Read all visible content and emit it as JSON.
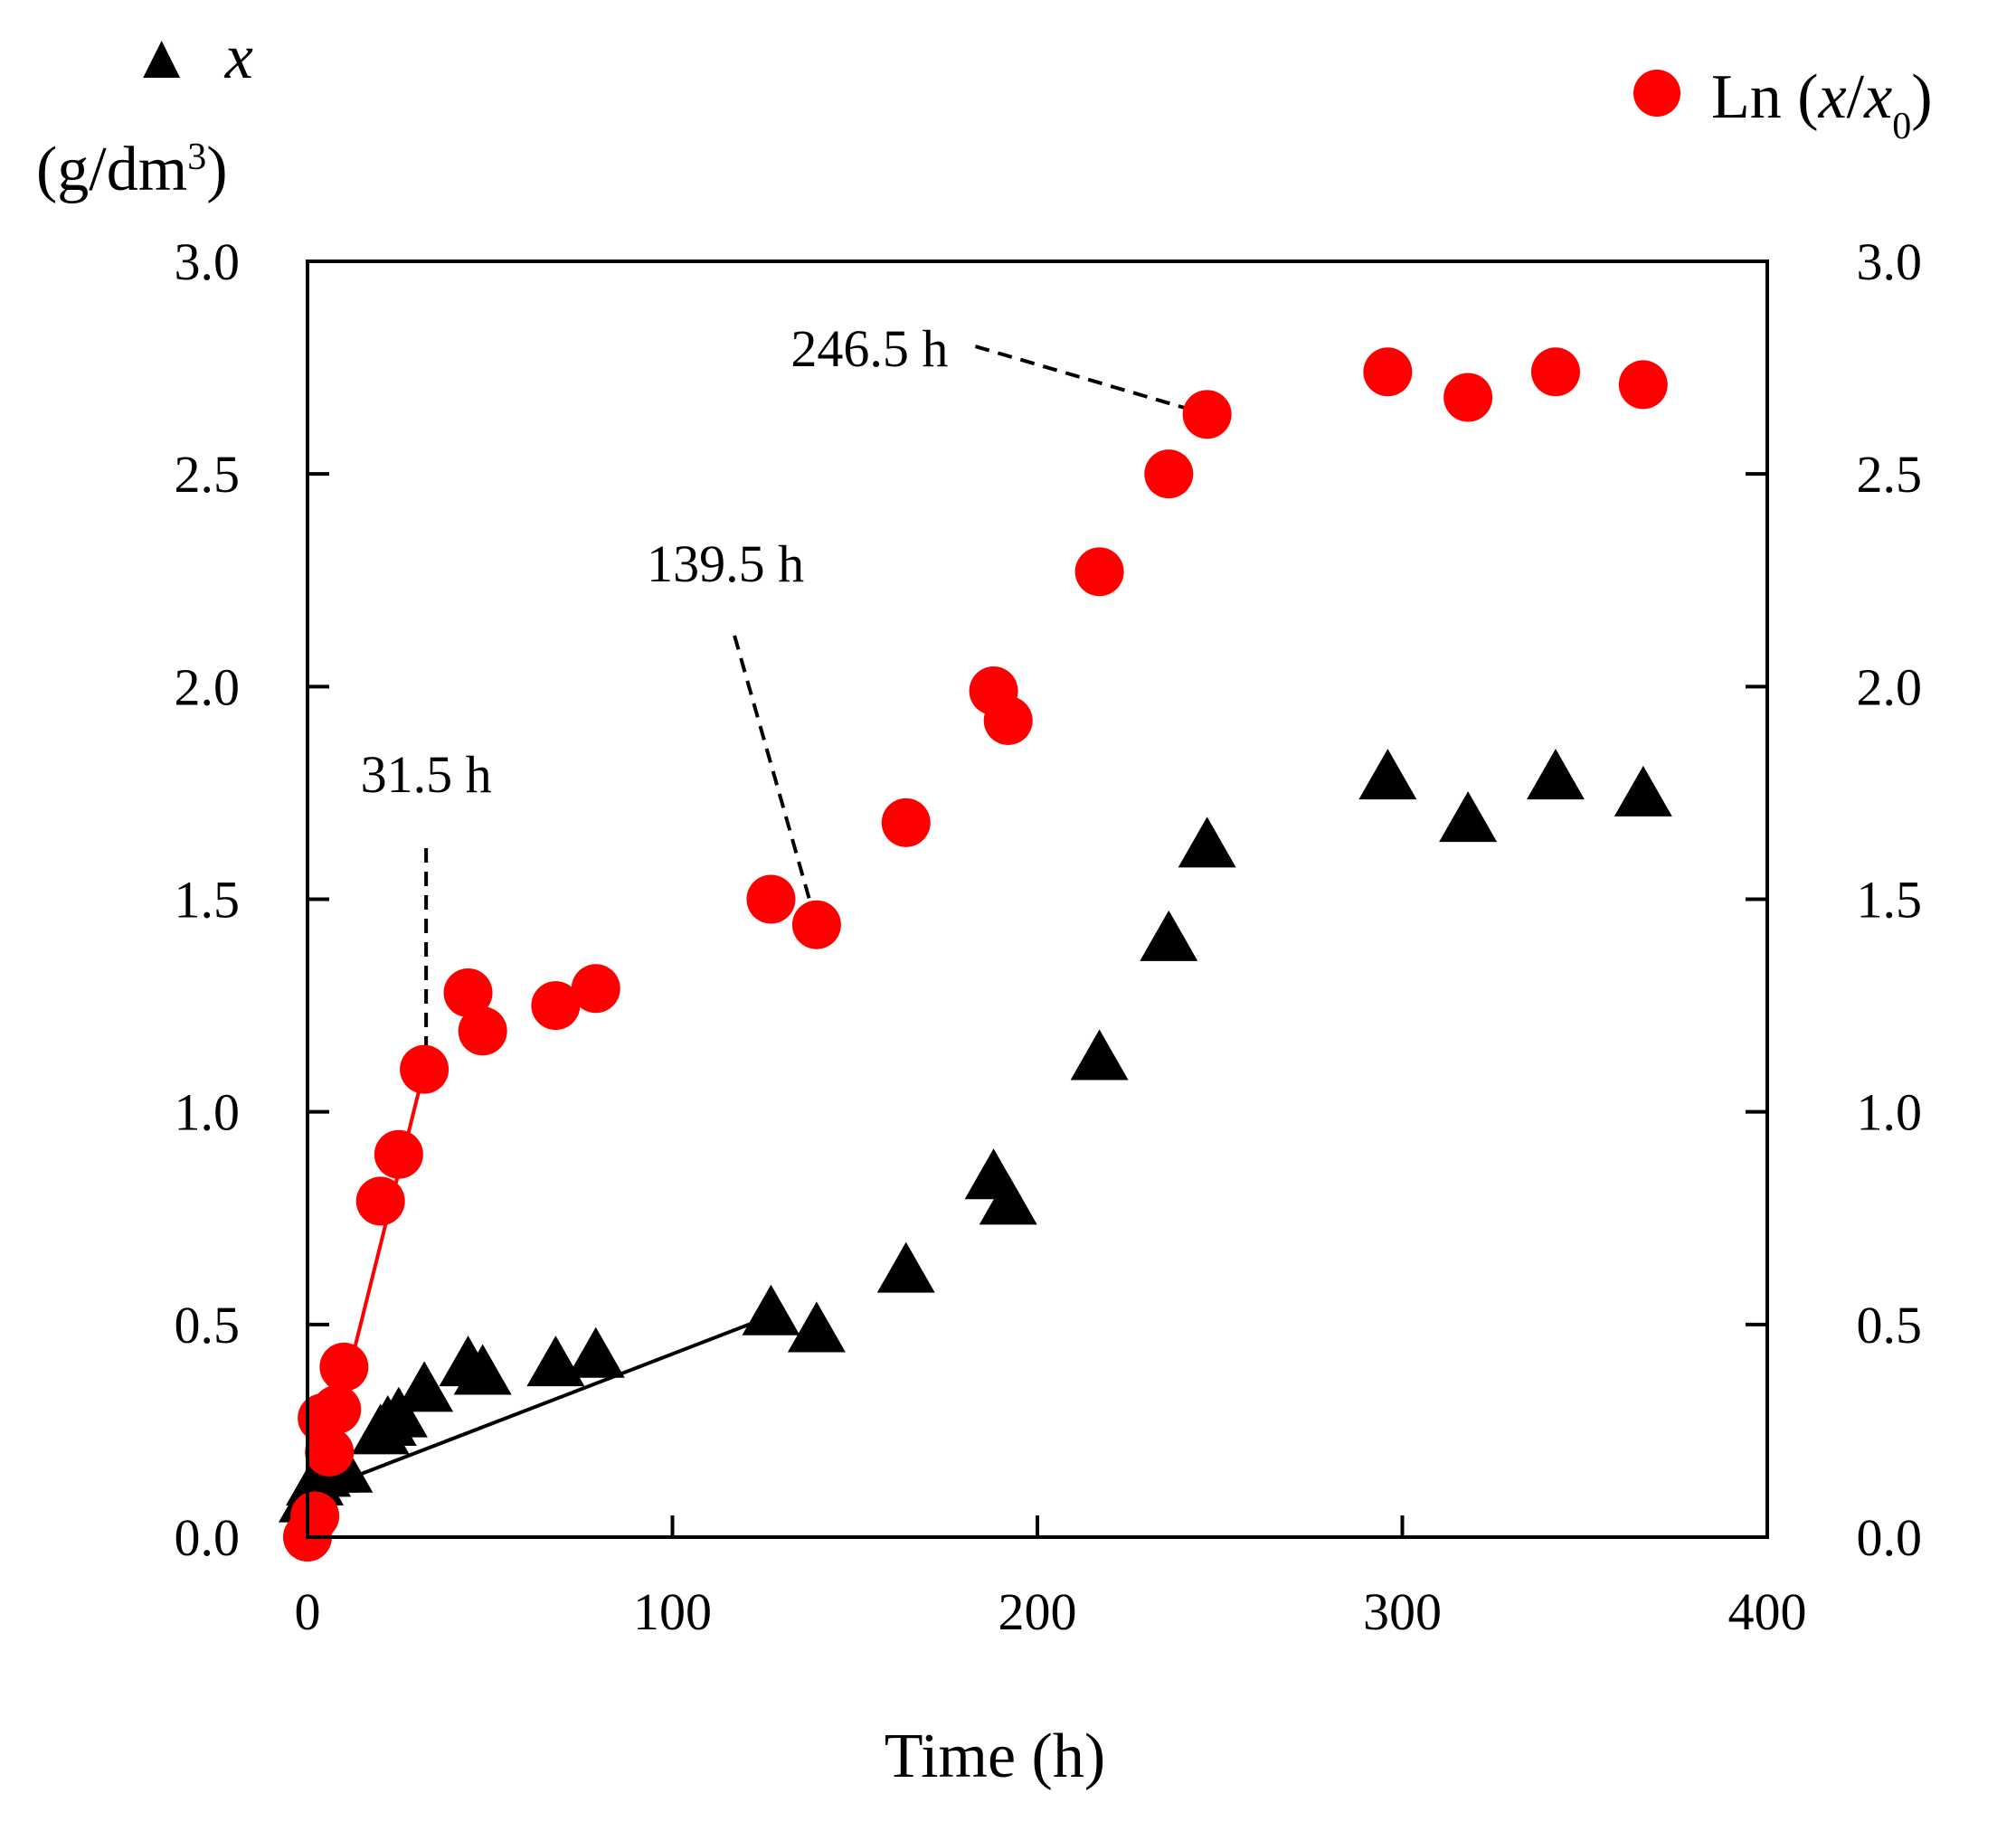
{
  "chart_data": {
    "type": "scatter",
    "xlabel": "Time (h)",
    "xlim": [
      0,
      400
    ],
    "ylim": [
      0,
      3.0
    ],
    "x_ticks": [
      "0",
      "100",
      "200",
      "300",
      "400"
    ],
    "y_ticks": [
      "0.0",
      "0.5",
      "1.0",
      "1.5",
      "2.0",
      "2.5",
      "3.0"
    ],
    "left_axis": {
      "symbol": "▲",
      "var": "x",
      "unit": "(g/dm",
      "unit_sup": "3",
      "unit_close": ")"
    },
    "right_axis": {
      "prefix": "Ln (",
      "var1": "x",
      "slash": "/",
      "var2": "x",
      "sub": "0",
      "suffix": ")"
    },
    "series": [
      {
        "name": "x",
        "marker": "triangle",
        "color": "#000000",
        "x": [
          0,
          2,
          4,
          6,
          8,
          10,
          20,
          22,
          25,
          32,
          44,
          48,
          68,
          79,
          127,
          139.5,
          164,
          188,
          192,
          217,
          236,
          246.5,
          296,
          318,
          342,
          366
        ],
        "y": [
          0.08,
          0.12,
          0.14,
          0.15,
          0.16,
          0.15,
          0.24,
          0.26,
          0.28,
          0.34,
          0.4,
          0.38,
          0.4,
          0.42,
          0.52,
          0.48,
          0.62,
          0.84,
          0.78,
          1.12,
          1.4,
          1.62,
          1.78,
          1.68,
          1.78,
          1.74
        ],
        "fit": {
          "x": [
            0,
            127
          ],
          "y": [
            0.1,
            0.52
          ]
        }
      },
      {
        "name": "Ln (x/x0)",
        "marker": "circle",
        "color": "#ff0000",
        "x": [
          0,
          2,
          4,
          6,
          8,
          10,
          20,
          25,
          32,
          44,
          48,
          68,
          79,
          127,
          139.5,
          164,
          188,
          192,
          217,
          236,
          246.5,
          296,
          318,
          342,
          366
        ],
        "y": [
          0.0,
          0.05,
          0.28,
          0.2,
          0.3,
          0.4,
          0.79,
          0.9,
          1.1,
          1.28,
          1.19,
          1.25,
          1.29,
          1.5,
          1.44,
          1.68,
          1.99,
          1.92,
          2.27,
          2.5,
          2.64,
          2.74,
          2.68,
          2.74,
          2.71
        ],
        "fit": {
          "x": [
            0,
            32
          ],
          "y": [
            0.0,
            1.1
          ]
        }
      }
    ],
    "annotations": [
      {
        "text": "31.5 h",
        "from": [
          32.5,
          1.62
        ],
        "to": [
          32.5,
          1.1
        ]
      },
      {
        "text": "139.5 h",
        "from": [
          117,
          2.12
        ],
        "to": [
          139.5,
          1.44
        ]
      },
      {
        "text": "246.5 h",
        "from": [
          183,
          2.8
        ],
        "to": [
          246.5,
          2.64
        ]
      }
    ]
  }
}
